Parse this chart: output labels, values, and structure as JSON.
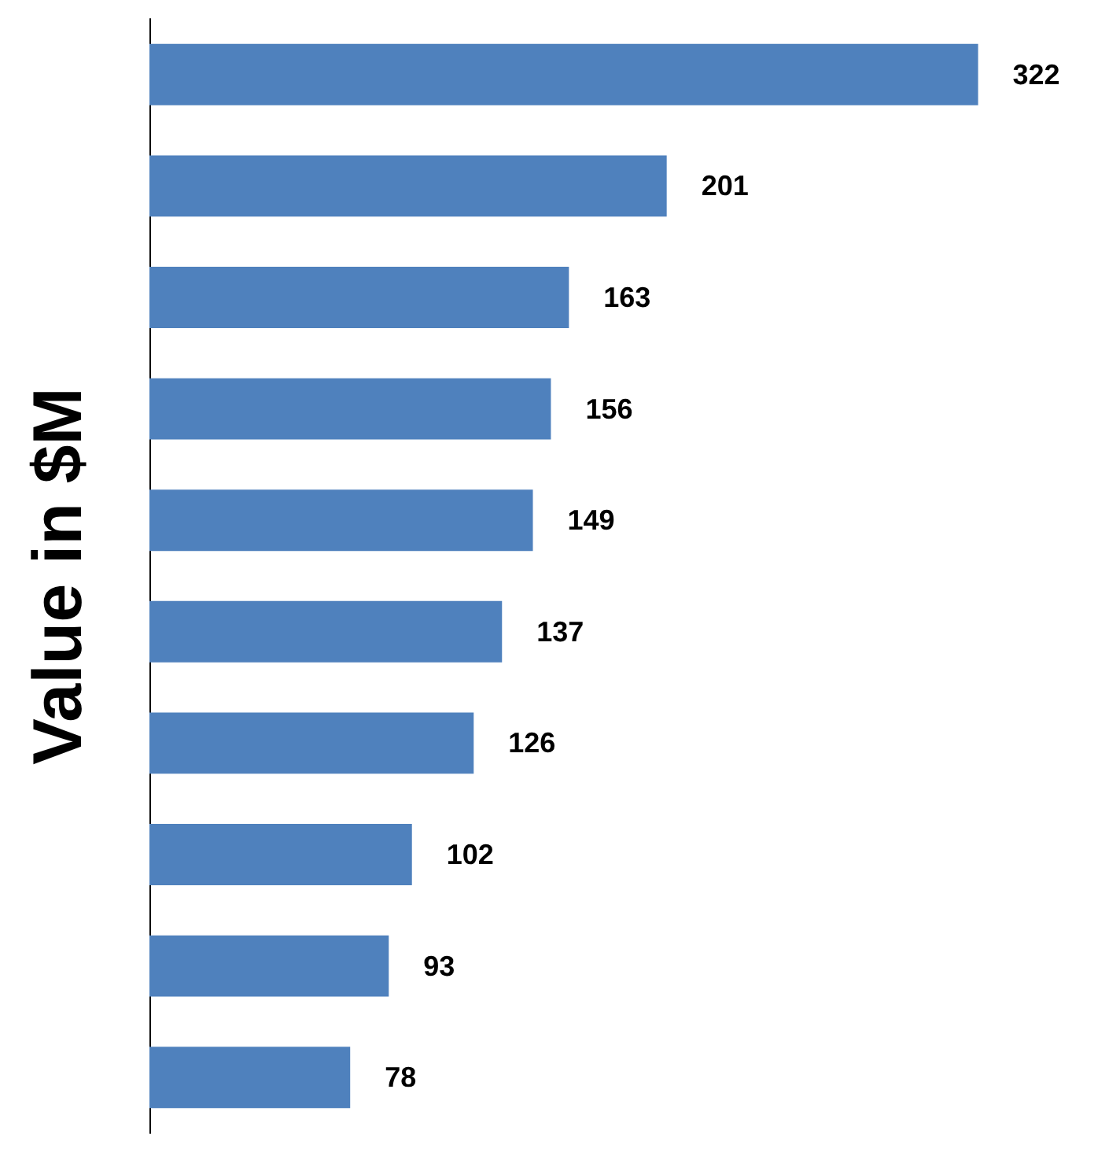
{
  "chart_data": {
    "type": "bar",
    "orientation": "horizontal",
    "ylabel": "Value in $M",
    "categories": [
      null,
      null,
      null,
      null,
      null,
      null,
      null,
      null,
      null,
      null
    ],
    "values": [
      322,
      201,
      163,
      156,
      149,
      137,
      126,
      102,
      93,
      78
    ],
    "color": "#4f81bd",
    "data_labels": true
  }
}
